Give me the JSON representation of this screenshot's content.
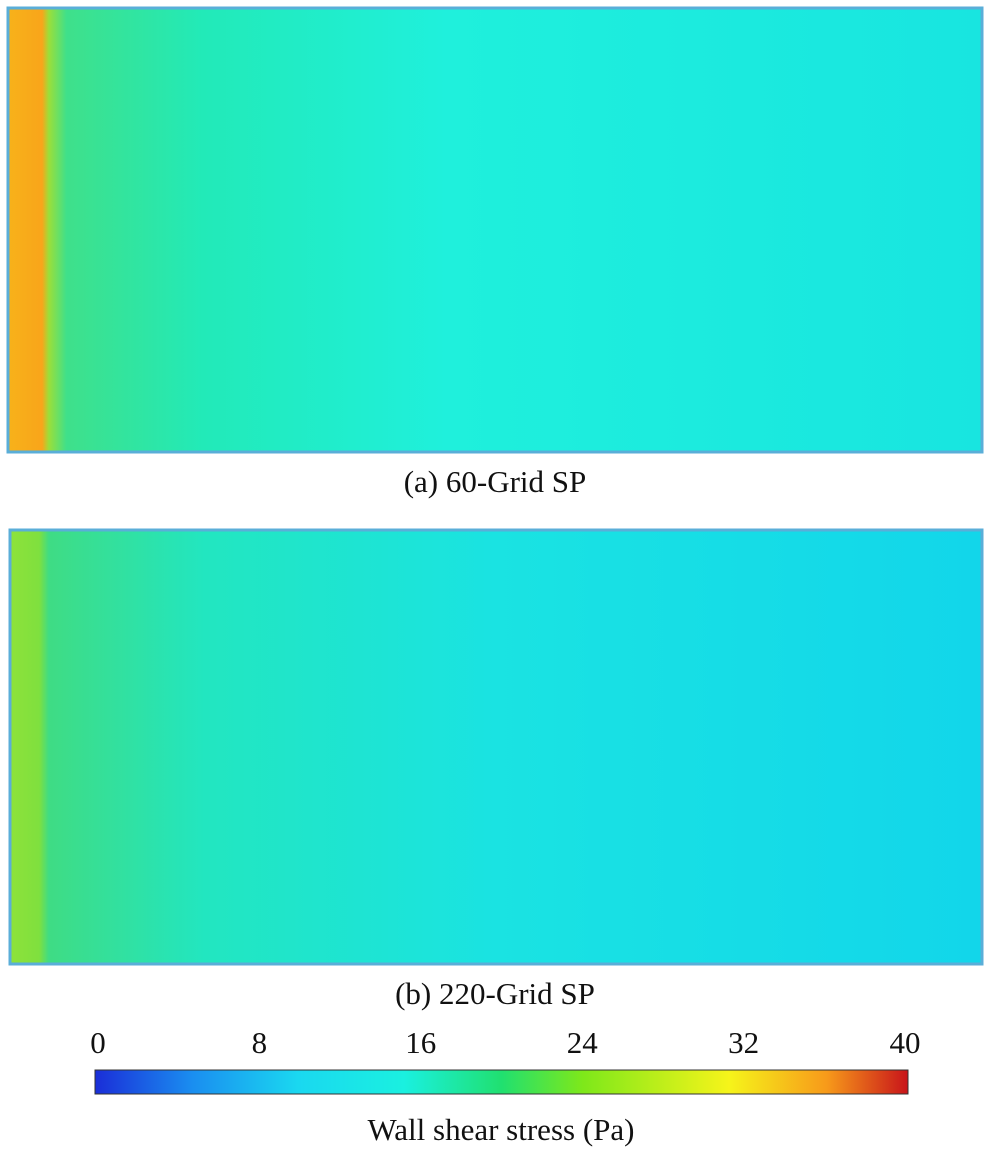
{
  "panels": [
    {
      "caption": "(a) 60-Grid SP"
    },
    {
      "caption": "(b) 220-Grid SP"
    }
  ],
  "colorbar": {
    "label": "Wall shear stress (Pa)",
    "lim": [
      0,
      40
    ],
    "ticks": [
      0,
      8,
      16,
      24,
      32,
      40
    ]
  }
}
